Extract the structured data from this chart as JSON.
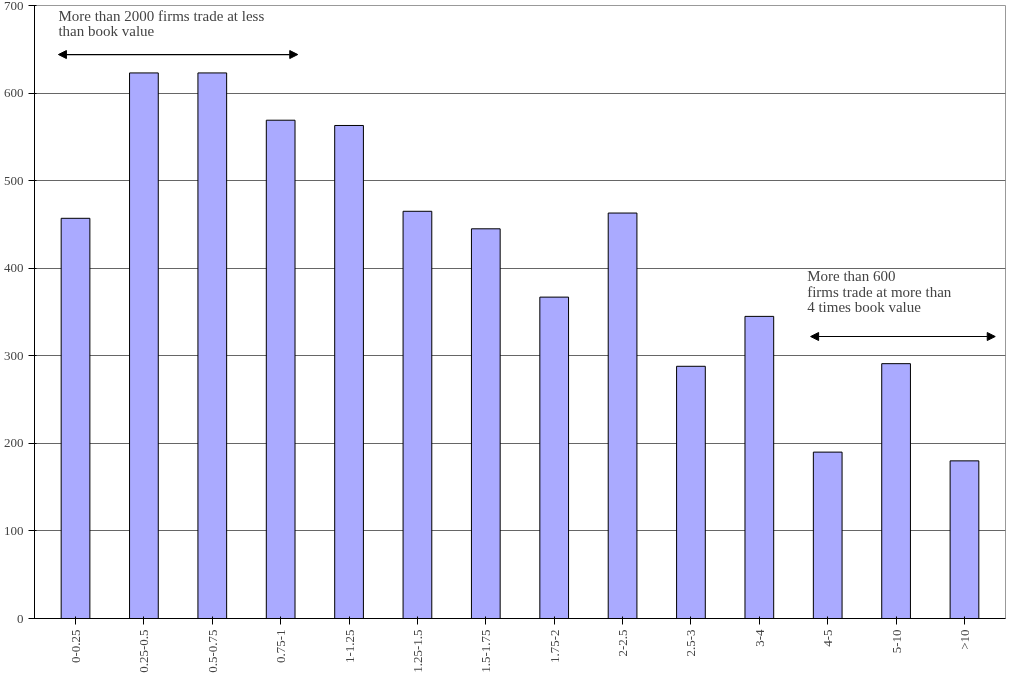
{
  "chart_data": {
    "type": "bar",
    "categories": [
      "0-0.25",
      "0.25-0.5",
      "0.5-0.75",
      "0.75-1",
      "1-1.25",
      "1.25-1.5",
      "1.5-1.75",
      "1.75-2",
      "2-2.5",
      "2.5-3",
      "3-4",
      "4-5",
      "5-10",
      ">10"
    ],
    "values": [
      457,
      623,
      623,
      569,
      563,
      465,
      445,
      367,
      463,
      288,
      345,
      190,
      291,
      180
    ],
    "color": "#aaaaff",
    "ylim": [
      0,
      700
    ],
    "yticks": [
      0,
      100,
      200,
      300,
      400,
      500,
      600,
      700
    ],
    "grid": "y",
    "annotations": [
      "More than 2000 firms trade at less than book value",
      "More than 600 firms trade at more than 4 times book value"
    ]
  }
}
